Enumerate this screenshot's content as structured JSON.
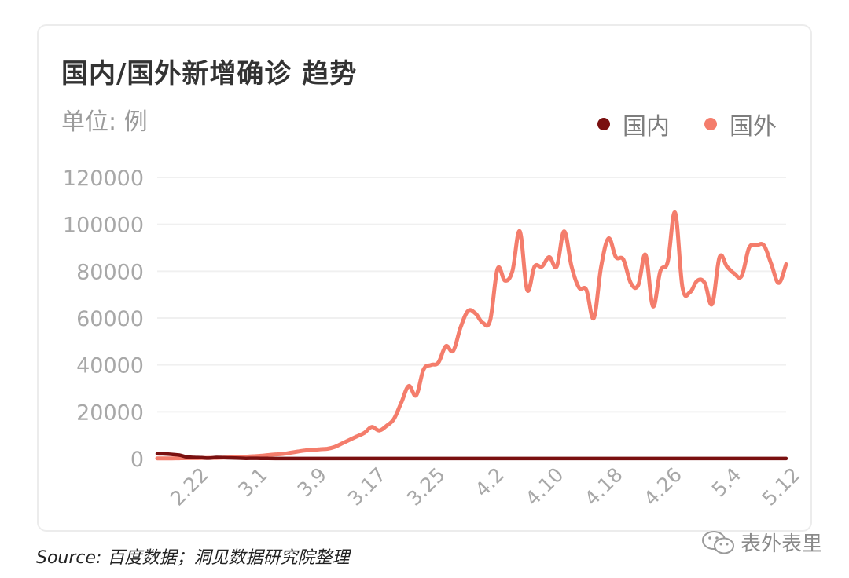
{
  "title": "国内/国外新增确诊 趋势",
  "unit": "单位: 例",
  "source": "Source: 百度数据；洞见数据研究院整理",
  "watermark": "表外表里",
  "colors": {
    "domestic": "#7a1010",
    "foreign": "#f47d6c",
    "grid": "#f0f0f0",
    "axis_text": "#a8a8a8"
  },
  "chart_data": {
    "type": "line",
    "title": "国内/国外新增确诊 趋势",
    "ylabel": "单位: 例",
    "ylim": [
      0,
      120000
    ],
    "yticks": [
      0,
      20000,
      40000,
      60000,
      80000,
      100000,
      120000
    ],
    "x_tick_labels": [
      "2.22",
      "3.1",
      "3.9",
      "3.17",
      "3.25",
      "4.2",
      "4.10",
      "4.18",
      "4.26",
      "5.4",
      "5.12"
    ],
    "x_start": "2.16",
    "x_end": "5.12",
    "legend_position": "top-right",
    "grid": true,
    "series": [
      {
        "name": "国内",
        "color": "#7a1010",
        "values": [
          2100,
          2000,
          1800,
          1500,
          700,
          500,
          400,
          200,
          500,
          400,
          300,
          200,
          100,
          150,
          100,
          80,
          50,
          40,
          30,
          25,
          20,
          20,
          20,
          25,
          30,
          40,
          40,
          50,
          50,
          50,
          50,
          50,
          40,
          40,
          40,
          40,
          40,
          40,
          40,
          40,
          40,
          40,
          40,
          40,
          40,
          40,
          40,
          40,
          40,
          40,
          40,
          40,
          40,
          40,
          40,
          40,
          40,
          40,
          40,
          40,
          40,
          40,
          40,
          40,
          40,
          40,
          40,
          40,
          40,
          40,
          40,
          40,
          40,
          40,
          40,
          40,
          40,
          40,
          40,
          40,
          40,
          40,
          40,
          40,
          40,
          40
        ]
      },
      {
        "name": "国外",
        "color": "#f47d6c",
        "values": [
          100,
          100,
          100,
          150,
          200,
          200,
          250,
          300,
          300,
          400,
          500,
          600,
          800,
          1000,
          1200,
          1500,
          1800,
          2000,
          2500,
          3000,
          3500,
          3700,
          4000,
          4200,
          5000,
          6500,
          8000,
          9500,
          11000,
          13500,
          12000,
          14000,
          17000,
          24000,
          31000,
          27000,
          38000,
          40000,
          41000,
          48000,
          46000,
          56000,
          63000,
          62000,
          58000,
          59000,
          81000,
          76000,
          80000,
          97000,
          72000,
          82000,
          82000,
          86000,
          82000,
          97000,
          82000,
          73000,
          72000,
          60000,
          82000,
          94000,
          86000,
          85000,
          75000,
          74000,
          87000,
          65000,
          80000,
          84000,
          105000,
          73000,
          71000,
          76000,
          75000,
          66000,
          86000,
          82000,
          79000,
          78000,
          90000,
          91000,
          91000,
          83000,
          75000,
          83000
        ]
      }
    ]
  }
}
